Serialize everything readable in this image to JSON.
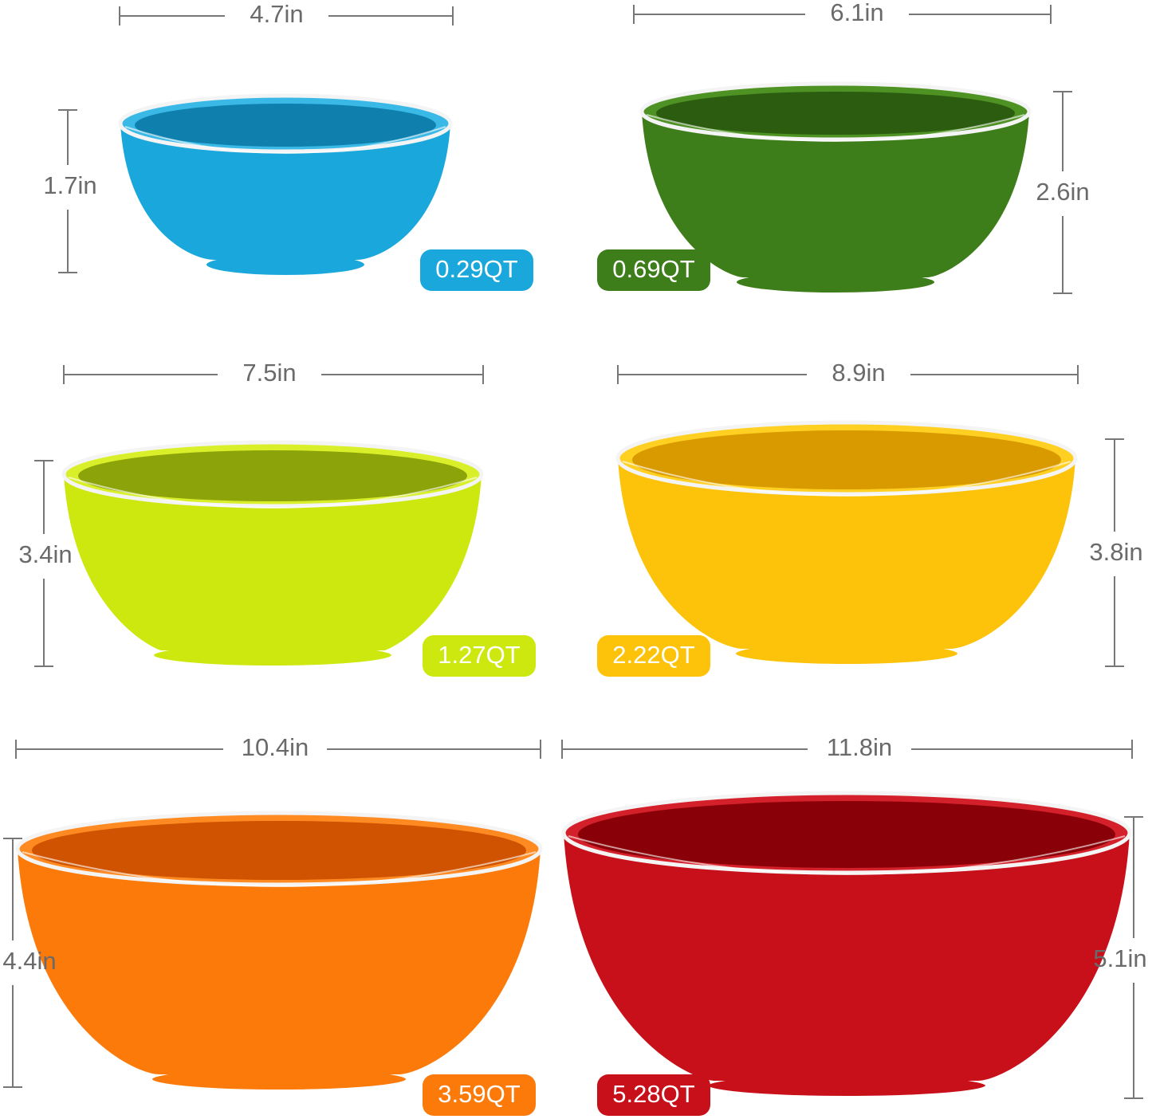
{
  "bowls": [
    {
      "width": "4.7in",
      "height": "1.7in",
      "capacity": "0.29QT"
    },
    {
      "width": "6.1in",
      "height": "2.6in",
      "capacity": "0.69QT"
    },
    {
      "width": "7.5in",
      "height": "3.4in",
      "capacity": "1.27QT"
    },
    {
      "width": "8.9in",
      "height": "3.8in",
      "capacity": "2.22QT"
    },
    {
      "width": "10.4in",
      "height": "4.4in",
      "capacity": "3.59QT"
    },
    {
      "width": "11.8in",
      "height": "5.1in",
      "capacity": "5.28QT"
    }
  ]
}
